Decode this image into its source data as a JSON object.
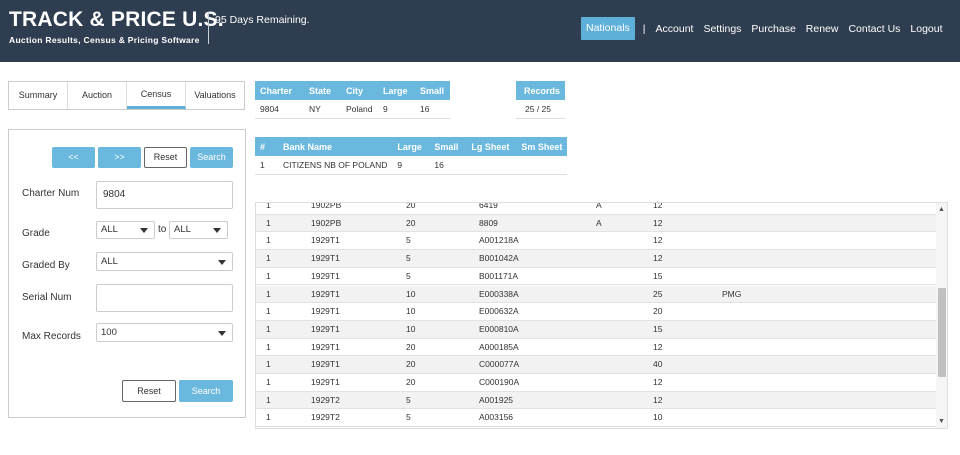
{
  "header": {
    "brand_title": "TRACK & PRICE U.S.",
    "brand_subtitle": "Auction Results, Census & Pricing Software",
    "days_remaining": "95 Days Remaining.",
    "nav_active": "Nationals",
    "nav_separator": "|",
    "nav_items": [
      "Account",
      "Settings",
      "Purchase",
      "Renew",
      "Contact Us",
      "Logout"
    ],
    "nav_active_color": "#5fb0d9",
    "background_color": "#2e3d4f"
  },
  "tabs": [
    "Summary",
    "Auction",
    "Census",
    "Valuations"
  ],
  "active_tab": "Census",
  "panel": {
    "prev_label": "<<",
    "next_label": ">>",
    "top_reset_label": "Reset",
    "top_search_label": "Search",
    "charter_label": "Charter Num",
    "charter_value": "9804",
    "grade_label": "Grade",
    "grade_from": "ALL",
    "grade_to_word": "to",
    "grade_to": "ALL",
    "graded_by_label": "Graded By",
    "graded_by_value": "ALL",
    "serial_label": "Serial Num",
    "serial_value": "",
    "max_records_label": "Max Records",
    "max_records_value": "100",
    "bottom_reset_label": "Reset",
    "bottom_search_label": "Search"
  },
  "charter_table": {
    "headers": [
      "Charter",
      "State",
      "City",
      "Large",
      "Small"
    ],
    "row": [
      "9804",
      "NY",
      "Poland",
      "9",
      "16"
    ]
  },
  "records_table": {
    "header": "Records",
    "value": "25 / 25"
  },
  "bank_table": {
    "headers": [
      "#",
      "Bank Name",
      "Large",
      "Small",
      "Lg Sheet",
      "Sm Sheet"
    ],
    "row": [
      "1",
      "CITIZENS NB OF POLAND",
      "9",
      "16",
      "",
      ""
    ]
  },
  "grid_rows": [
    [
      "1",
      "1902PB",
      "20",
      "6419",
      "A",
      "12",
      ""
    ],
    [
      "1",
      "1902PB",
      "20",
      "8809",
      "A",
      "12",
      ""
    ],
    [
      "1",
      "1929T1",
      "5",
      "A001218A",
      "",
      "12",
      ""
    ],
    [
      "1",
      "1929T1",
      "5",
      "B001042A",
      "",
      "12",
      ""
    ],
    [
      "1",
      "1929T1",
      "5",
      "B001171A",
      "",
      "15",
      ""
    ],
    [
      "1",
      "1929T1",
      "10",
      "E000338A",
      "",
      "25",
      "PMG"
    ],
    [
      "1",
      "1929T1",
      "10",
      "E000632A",
      "",
      "20",
      ""
    ],
    [
      "1",
      "1929T1",
      "10",
      "E000810A",
      "",
      "15",
      ""
    ],
    [
      "1",
      "1929T1",
      "20",
      "A000185A",
      "",
      "12",
      ""
    ],
    [
      "1",
      "1929T1",
      "20",
      "C000077A",
      "",
      "40",
      ""
    ],
    [
      "1",
      "1929T1",
      "20",
      "C000190A",
      "",
      "12",
      ""
    ],
    [
      "1",
      "1929T2",
      "5",
      "A001925",
      "",
      "12",
      ""
    ],
    [
      "1",
      "1929T2",
      "5",
      "A003156",
      "",
      "10",
      ""
    ]
  ],
  "icons": {
    "caret": "chevron-down-icon",
    "scroll_up": "chevron-up-icon",
    "scroll_down": "chevron-down-icon"
  },
  "accent_color": "#6bb8de"
}
